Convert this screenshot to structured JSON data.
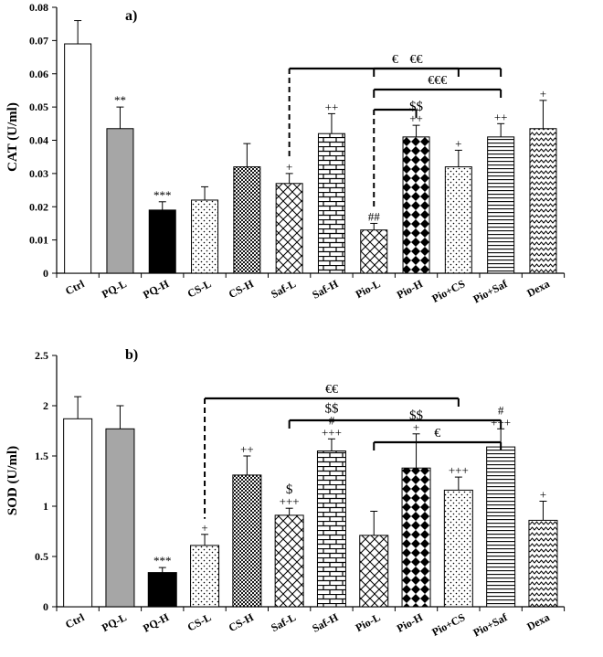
{
  "chart_data": [
    {
      "type": "bar",
      "panel_label": "a)",
      "ylabel": "CAT (U/ml)",
      "ylim": [
        0,
        0.08
      ],
      "yticks": [
        "0",
        "0.01",
        "0.02",
        "0.03",
        "0.04",
        "0.05",
        "0.06",
        "0.07",
        "0.08"
      ],
      "categories": [
        "Ctrl",
        "PQ-L",
        "PQ-H",
        "CS-L",
        "CS-H",
        "Saf-L",
        "Saf-H",
        "Pio-L",
        "Pio-H",
        "Pio+CS",
        "Pio+Saf",
        "Dexa"
      ],
      "values": [
        0.069,
        0.0435,
        0.019,
        0.022,
        0.032,
        0.027,
        0.042,
        0.013,
        0.041,
        0.032,
        0.041,
        0.0435
      ],
      "errors": [
        0.007,
        0.0065,
        0.0025,
        0.004,
        0.007,
        0.003,
        0.006,
        0.002,
        0.0035,
        0.005,
        0.004,
        0.0085
      ],
      "patterns": [
        "white",
        "gray",
        "black",
        "sparse-dots",
        "dense-dots",
        "diagonal-cross",
        "brick",
        "diagonal-cross",
        "diamonds",
        "sparse-dots",
        "horizontal-lines",
        "zigzag"
      ],
      "annotations": [
        [
          "",
          ""
        ],
        [
          "**",
          ""
        ],
        [
          "***",
          ""
        ],
        [
          "",
          ""
        ],
        [
          "",
          ""
        ],
        [
          "+",
          ""
        ],
        [
          "++",
          ""
        ],
        [
          "##",
          ""
        ],
        [
          "++",
          "$$"
        ],
        [
          "+",
          ""
        ],
        [
          "++",
          ""
        ],
        [
          "+",
          ""
        ]
      ],
      "brackets": [
        {
          "from": "Saf-L",
          "to": "Pio+Saf",
          "label": "€",
          "dashed_from": true
        },
        {
          "from": "Pio-L",
          "to": "Pio+Saf",
          "label": "€€€",
          "dashed_from": false
        },
        {
          "from": "Pio-L",
          "to": "Pio-H",
          "label": "",
          "dashed_from": true
        },
        {
          "from": "Pio-L",
          "to": "Pio+CS",
          "label": "€€",
          "dashed_from": false
        }
      ]
    },
    {
      "type": "bar",
      "panel_label": "b)",
      "ylabel": "SOD (U/ml)",
      "ylim": [
        0,
        2.5
      ],
      "yticks": [
        "0",
        "0.5",
        "1",
        "1.5",
        "2",
        "2.5"
      ],
      "categories": [
        "Ctrl",
        "PQ-L",
        "PQ-H",
        "CS-L",
        "CS-H",
        "Saf-L",
        "Saf-H",
        "Pio-L",
        "Pio-H",
        "Pio+CS",
        "Pio+Saf",
        "Dexa"
      ],
      "values": [
        1.87,
        1.77,
        0.34,
        0.61,
        1.31,
        0.91,
        1.55,
        0.71,
        1.38,
        1.16,
        1.59,
        0.86
      ],
      "errors": [
        0.22,
        0.23,
        0.05,
        0.11,
        0.19,
        0.07,
        0.12,
        0.24,
        0.34,
        0.13,
        0.18,
        0.19
      ],
      "patterns": [
        "white",
        "gray",
        "black",
        "sparse-dots",
        "dense-dots",
        "diagonal-cross",
        "brick",
        "diagonal-cross",
        "diamonds",
        "sparse-dots",
        "horizontal-lines",
        "zigzag"
      ],
      "annotations": [
        [
          "",
          "",
          ""
        ],
        [
          "",
          "",
          ""
        ],
        [
          "***",
          "",
          ""
        ],
        [
          "+",
          "",
          ""
        ],
        [
          "++",
          "",
          ""
        ],
        [
          "+++",
          "$",
          ""
        ],
        [
          "+++",
          "#",
          "$$"
        ],
        [
          "",
          "",
          ""
        ],
        [
          "+",
          "$$",
          ""
        ],
        [
          "+++",
          "",
          ""
        ],
        [
          "+++",
          "#",
          ""
        ],
        [
          "+",
          "",
          ""
        ]
      ],
      "brackets": [
        {
          "from": "CS-L",
          "to": "Pio+CS",
          "label": "€€",
          "dashed_from": true
        },
        {
          "from": "Saf-L",
          "to": "Pio+Saf",
          "label": "",
          "dashed_from": false
        },
        {
          "from": "Pio-L",
          "to": "Pio+Saf",
          "label": "€",
          "dashed_from": false
        }
      ]
    }
  ],
  "colors": {
    "ink": "#000000",
    "gray_fill": "#a6a6a6",
    "background": "#ffffff"
  }
}
